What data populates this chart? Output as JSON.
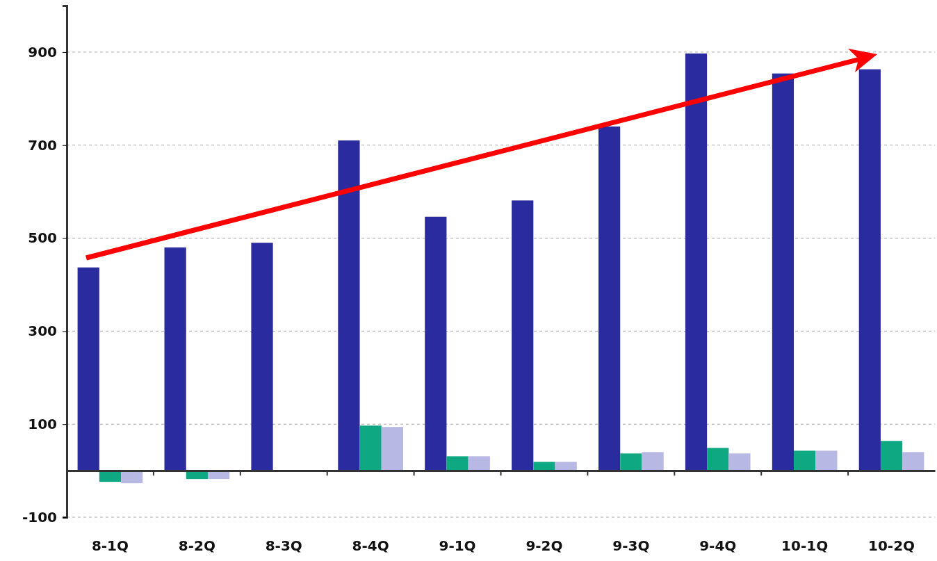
{
  "chart_data": {
    "type": "bar",
    "categories": [
      "8-1Q",
      "8-2Q",
      "8-3Q",
      "8-4Q",
      "9-1Q",
      "9-2Q",
      "9-3Q",
      "9-4Q",
      "10-1Q",
      "10-2Q"
    ],
    "series": [
      {
        "color": "#2b2ba0",
        "values": [
          437,
          480,
          490,
          710,
          546,
          581,
          740,
          897,
          854,
          863
        ]
      },
      {
        "color": "#0ea882",
        "values": [
          -24,
          -18,
          null,
          97,
          31,
          19,
          37,
          49,
          43,
          64
        ]
      },
      {
        "color": "#b8b8e4",
        "values": [
          -27,
          -18,
          null,
          94,
          31,
          19,
          40,
          37,
          43,
          40
        ]
      }
    ],
    "ylim": [
      -100,
      1000
    ],
    "yticks": [
      -100,
      100,
      300,
      500,
      700,
      900
    ],
    "grid": "y"
  }
}
